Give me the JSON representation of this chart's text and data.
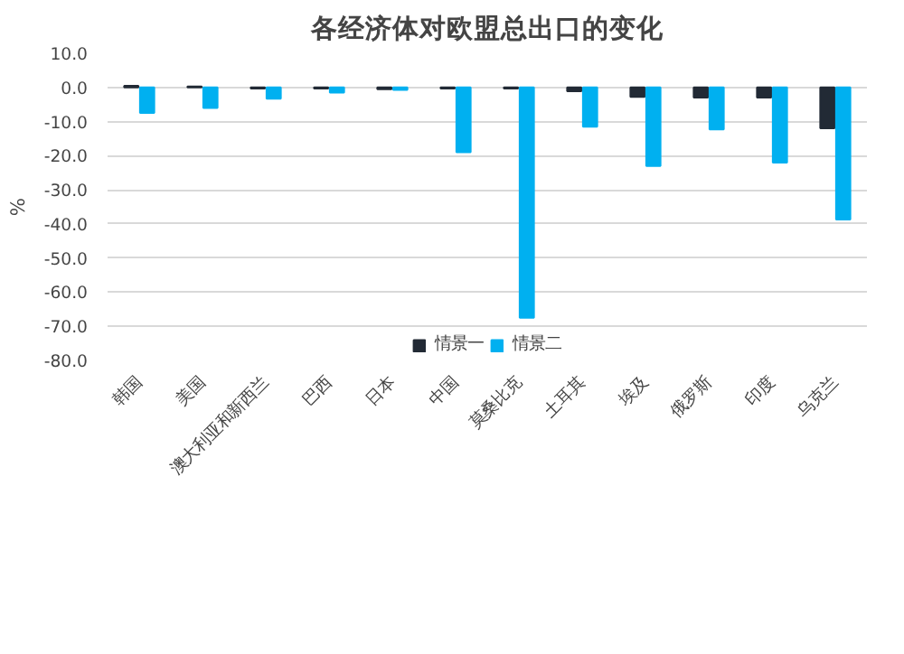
{
  "chart_data": {
    "type": "bar",
    "title": "各经济体对欧盟总出口的变化",
    "ylabel": "%",
    "categories": [
      "韩国",
      "美国",
      "澳大利亚和新西兰",
      "巴西",
      "日本",
      "中国",
      "莫桑比克",
      "土耳其",
      "埃及",
      "俄罗斯",
      "印度",
      "乌克兰"
    ],
    "series": [
      {
        "name": "情景一",
        "color": "#222a35",
        "values": [
          0.5,
          0.3,
          -0.3,
          -0.3,
          -0.5,
          -0.3,
          -0.3,
          -1.1,
          -2.8,
          -3.0,
          -3.0,
          -12.0
        ]
      },
      {
        "name": "情景二",
        "color": "#00b0f0",
        "values": [
          -7.5,
          -6.0,
          -3.3,
          -1.5,
          -0.7,
          -19.0,
          -67.5,
          -11.5,
          -23.0,
          -12.3,
          -22.0,
          -38.7
        ]
      }
    ],
    "ylim": [
      -80,
      10
    ],
    "yticks": [
      {
        "value": 10,
        "label": "10.0"
      },
      {
        "value": 0,
        "label": "0.0"
      },
      {
        "value": -10,
        "label": "-10.0"
      },
      {
        "value": -20,
        "label": "-20.0"
      },
      {
        "value": -30,
        "label": "-30.0"
      },
      {
        "value": -40,
        "label": "-40.0"
      },
      {
        "value": -50,
        "label": "-50.0"
      },
      {
        "value": -60,
        "label": "-60.0"
      },
      {
        "value": -70,
        "label": "-70.0"
      },
      {
        "value": -80,
        "label": "-80.0"
      }
    ],
    "grid": "y",
    "legend": "bottom"
  }
}
